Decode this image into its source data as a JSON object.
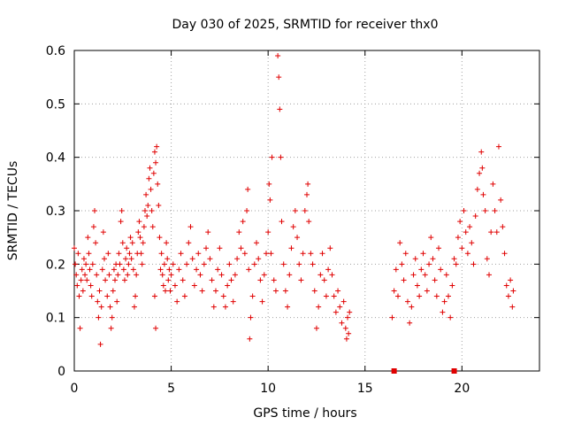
{
  "chart_data": {
    "type": "scatter",
    "title": "Day 030 of 2025, SRMTID for receiver thx0",
    "xlabel": "GPS time / hours",
    "ylabel": "SRMTID / TECUs",
    "xlim": [
      0,
      24
    ],
    "ylim": [
      0,
      0.6
    ],
    "xticks": [
      0,
      5,
      10,
      15,
      20
    ],
    "xtick_labels": [
      "0",
      "5",
      "10",
      "15",
      "20"
    ],
    "yticks": [
      0,
      0.1,
      0.2,
      0.3,
      0.4,
      0.5,
      0.6
    ],
    "ytick_labels": [
      "0",
      "0.1",
      "0.2",
      "0.3",
      "0.4",
      "0.5",
      "0.6"
    ],
    "grid": true,
    "marker": "plus",
    "color": "#e00000",
    "series": [
      {
        "name": "SRMTID",
        "points": [
          [
            0.0,
            0.23
          ],
          [
            0.05,
            0.2
          ],
          [
            0.1,
            0.18
          ],
          [
            0.15,
            0.16
          ],
          [
            0.2,
            0.22
          ],
          [
            0.25,
            0.14
          ],
          [
            0.3,
            0.08
          ],
          [
            0.35,
            0.17
          ],
          [
            0.4,
            0.19
          ],
          [
            0.45,
            0.15
          ],
          [
            0.5,
            0.21
          ],
          [
            0.55,
            0.18
          ],
          [
            0.6,
            0.2
          ],
          [
            0.65,
            0.17
          ],
          [
            0.7,
            0.25
          ],
          [
            0.75,
            0.22
          ],
          [
            0.8,
            0.19
          ],
          [
            0.85,
            0.16
          ],
          [
            0.9,
            0.14
          ],
          [
            0.95,
            0.2
          ],
          [
            1.0,
            0.27
          ],
          [
            1.05,
            0.3
          ],
          [
            1.1,
            0.24
          ],
          [
            1.15,
            0.18
          ],
          [
            1.2,
            0.13
          ],
          [
            1.25,
            0.1
          ],
          [
            1.3,
            0.15
          ],
          [
            1.35,
            0.05
          ],
          [
            1.4,
            0.12
          ],
          [
            1.45,
            0.19
          ],
          [
            1.5,
            0.26
          ],
          [
            1.55,
            0.21
          ],
          [
            1.6,
            0.17
          ],
          [
            1.7,
            0.14
          ],
          [
            1.75,
            0.22
          ],
          [
            1.8,
            0.18
          ],
          [
            1.85,
            0.12
          ],
          [
            1.9,
            0.08
          ],
          [
            1.95,
            0.1
          ],
          [
            2.0,
            0.15
          ],
          [
            2.05,
            0.19
          ],
          [
            2.1,
            0.17
          ],
          [
            2.15,
            0.2
          ],
          [
            2.2,
            0.13
          ],
          [
            2.25,
            0.18
          ],
          [
            2.3,
            0.22
          ],
          [
            2.35,
            0.2
          ],
          [
            2.4,
            0.28
          ],
          [
            2.45,
            0.3
          ],
          [
            2.5,
            0.24
          ],
          [
            2.55,
            0.19
          ],
          [
            2.6,
            0.17
          ],
          [
            2.65,
            0.21
          ],
          [
            2.7,
            0.23
          ],
          [
            2.75,
            0.18
          ],
          [
            2.8,
            0.2
          ],
          [
            2.85,
            0.22
          ],
          [
            2.9,
            0.25
          ],
          [
            2.95,
            0.21
          ],
          [
            3.0,
            0.24
          ],
          [
            3.05,
            0.19
          ],
          [
            3.1,
            0.12
          ],
          [
            3.15,
            0.14
          ],
          [
            3.2,
            0.18
          ],
          [
            3.25,
            0.22
          ],
          [
            3.3,
            0.26
          ],
          [
            3.35,
            0.28
          ],
          [
            3.4,
            0.25
          ],
          [
            3.45,
            0.22
          ],
          [
            3.5,
            0.2
          ],
          [
            3.55,
            0.24
          ],
          [
            3.6,
            0.27
          ],
          [
            3.65,
            0.3
          ],
          [
            3.7,
            0.33
          ],
          [
            3.75,
            0.29
          ],
          [
            3.8,
            0.31
          ],
          [
            3.85,
            0.36
          ],
          [
            3.9,
            0.38
          ],
          [
            3.95,
            0.34
          ],
          [
            4.0,
            0.3
          ],
          [
            4.05,
            0.27
          ],
          [
            4.1,
            0.37
          ],
          [
            4.15,
            0.41
          ],
          [
            4.2,
            0.39
          ],
          [
            4.25,
            0.42
          ],
          [
            4.3,
            0.35
          ],
          [
            4.35,
            0.31
          ],
          [
            4.4,
            0.25
          ],
          [
            4.45,
            0.19
          ],
          [
            4.2,
            0.08
          ],
          [
            4.15,
            0.14
          ],
          [
            4.5,
            0.22
          ],
          [
            4.55,
            0.18
          ],
          [
            4.6,
            0.16
          ],
          [
            4.65,
            0.2
          ],
          [
            4.7,
            0.15
          ],
          [
            4.75,
            0.24
          ],
          [
            4.8,
            0.21
          ],
          [
            4.85,
            0.17
          ],
          [
            4.9,
            0.19
          ],
          [
            4.95,
            0.15
          ],
          [
            5.0,
            0.18
          ],
          [
            5.1,
            0.2
          ],
          [
            5.2,
            0.16
          ],
          [
            5.3,
            0.13
          ],
          [
            5.4,
            0.19
          ],
          [
            5.5,
            0.22
          ],
          [
            5.6,
            0.17
          ],
          [
            5.7,
            0.14
          ],
          [
            5.8,
            0.2
          ],
          [
            5.9,
            0.24
          ],
          [
            6.0,
            0.27
          ],
          [
            6.1,
            0.21
          ],
          [
            6.2,
            0.16
          ],
          [
            6.3,
            0.19
          ],
          [
            6.4,
            0.22
          ],
          [
            6.5,
            0.18
          ],
          [
            6.6,
            0.15
          ],
          [
            6.7,
            0.2
          ],
          [
            6.8,
            0.23
          ],
          [
            6.9,
            0.26
          ],
          [
            7.0,
            0.21
          ],
          [
            7.1,
            0.17
          ],
          [
            7.2,
            0.12
          ],
          [
            7.3,
            0.15
          ],
          [
            7.4,
            0.19
          ],
          [
            7.5,
            0.23
          ],
          [
            7.6,
            0.18
          ],
          [
            7.7,
            0.14
          ],
          [
            7.8,
            0.12
          ],
          [
            7.9,
            0.16
          ],
          [
            8.0,
            0.2
          ],
          [
            8.1,
            0.17
          ],
          [
            8.2,
            0.13
          ],
          [
            8.3,
            0.18
          ],
          [
            8.4,
            0.21
          ],
          [
            8.5,
            0.26
          ],
          [
            8.6,
            0.23
          ],
          [
            8.7,
            0.28
          ],
          [
            8.8,
            0.22
          ],
          [
            8.9,
            0.3
          ],
          [
            8.95,
            0.34
          ],
          [
            9.0,
            0.19
          ],
          [
            9.05,
            0.06
          ],
          [
            9.1,
            0.1
          ],
          [
            9.2,
            0.14
          ],
          [
            9.3,
            0.2
          ],
          [
            9.4,
            0.24
          ],
          [
            9.5,
            0.21
          ],
          [
            9.6,
            0.17
          ],
          [
            9.7,
            0.13
          ],
          [
            9.8,
            0.18
          ],
          [
            9.9,
            0.22
          ],
          [
            10.0,
            0.26
          ],
          [
            10.05,
            0.35
          ],
          [
            10.1,
            0.32
          ],
          [
            10.15,
            0.22
          ],
          [
            10.2,
            0.4
          ],
          [
            10.3,
            0.17
          ],
          [
            10.4,
            0.15
          ],
          [
            10.5,
            0.59
          ],
          [
            10.55,
            0.55
          ],
          [
            10.6,
            0.49
          ],
          [
            10.65,
            0.4
          ],
          [
            10.7,
            0.28
          ],
          [
            10.8,
            0.2
          ],
          [
            10.9,
            0.15
          ],
          [
            11.0,
            0.12
          ],
          [
            11.1,
            0.18
          ],
          [
            11.2,
            0.23
          ],
          [
            11.3,
            0.27
          ],
          [
            11.4,
            0.3
          ],
          [
            11.5,
            0.25
          ],
          [
            11.6,
            0.2
          ],
          [
            11.7,
            0.17
          ],
          [
            11.8,
            0.22
          ],
          [
            11.9,
            0.3
          ],
          [
            12.0,
            0.33
          ],
          [
            12.05,
            0.35
          ],
          [
            12.1,
            0.28
          ],
          [
            12.2,
            0.22
          ],
          [
            12.3,
            0.2
          ],
          [
            12.4,
            0.15
          ],
          [
            12.5,
            0.08
          ],
          [
            12.6,
            0.12
          ],
          [
            12.7,
            0.18
          ],
          [
            12.8,
            0.22
          ],
          [
            12.9,
            0.17
          ],
          [
            13.0,
            0.14
          ],
          [
            13.1,
            0.19
          ],
          [
            13.2,
            0.23
          ],
          [
            13.3,
            0.18
          ],
          [
            13.4,
            0.14
          ],
          [
            13.5,
            0.11
          ],
          [
            13.6,
            0.15
          ],
          [
            13.7,
            0.12
          ],
          [
            13.8,
            0.09
          ],
          [
            13.9,
            0.13
          ],
          [
            14.0,
            0.08
          ],
          [
            14.05,
            0.06
          ],
          [
            14.1,
            0.1
          ],
          [
            14.15,
            0.07
          ],
          [
            14.2,
            0.11
          ],
          [
            16.4,
            0.1
          ],
          [
            16.5,
            0.15
          ],
          [
            16.6,
            0.19
          ],
          [
            16.7,
            0.14
          ],
          [
            16.8,
            0.24
          ],
          [
            16.9,
            0.2
          ],
          [
            17.0,
            0.17
          ],
          [
            17.1,
            0.22
          ],
          [
            17.2,
            0.13
          ],
          [
            17.3,
            0.09
          ],
          [
            17.4,
            0.12
          ],
          [
            17.5,
            0.18
          ],
          [
            17.6,
            0.21
          ],
          [
            17.7,
            0.16
          ],
          [
            17.8,
            0.14
          ],
          [
            17.9,
            0.19
          ],
          [
            18.0,
            0.22
          ],
          [
            18.1,
            0.18
          ],
          [
            18.2,
            0.15
          ],
          [
            18.3,
            0.2
          ],
          [
            18.4,
            0.25
          ],
          [
            18.5,
            0.21
          ],
          [
            18.6,
            0.17
          ],
          [
            18.7,
            0.14
          ],
          [
            18.8,
            0.23
          ],
          [
            18.9,
            0.19
          ],
          [
            19.0,
            0.11
          ],
          [
            19.1,
            0.13
          ],
          [
            19.2,
            0.18
          ],
          [
            19.3,
            0.14
          ],
          [
            19.4,
            0.1
          ],
          [
            19.5,
            0.16
          ],
          [
            19.6,
            0.21
          ],
          [
            19.7,
            0.2
          ],
          [
            19.8,
            0.25
          ],
          [
            19.9,
            0.28
          ],
          [
            20.0,
            0.23
          ],
          [
            20.1,
            0.3
          ],
          [
            20.2,
            0.26
          ],
          [
            20.3,
            0.22
          ],
          [
            20.4,
            0.27
          ],
          [
            20.5,
            0.24
          ],
          [
            20.6,
            0.2
          ],
          [
            20.7,
            0.29
          ],
          [
            20.8,
            0.34
          ],
          [
            20.9,
            0.37
          ],
          [
            21.0,
            0.41
          ],
          [
            21.05,
            0.38
          ],
          [
            21.1,
            0.33
          ],
          [
            21.2,
            0.3
          ],
          [
            21.3,
            0.21
          ],
          [
            21.4,
            0.18
          ],
          [
            21.5,
            0.26
          ],
          [
            21.6,
            0.35
          ],
          [
            21.7,
            0.3
          ],
          [
            21.8,
            0.26
          ],
          [
            21.9,
            0.42
          ],
          [
            22.0,
            0.32
          ],
          [
            22.1,
            0.27
          ],
          [
            22.2,
            0.22
          ],
          [
            22.3,
            0.16
          ],
          [
            22.4,
            0.14
          ],
          [
            22.5,
            0.17
          ],
          [
            22.6,
            0.12
          ],
          [
            22.65,
            0.15
          ]
        ]
      }
    ],
    "zero_markers": [
      [
        16.5,
        0.0
      ],
      [
        19.6,
        0.0
      ]
    ]
  }
}
